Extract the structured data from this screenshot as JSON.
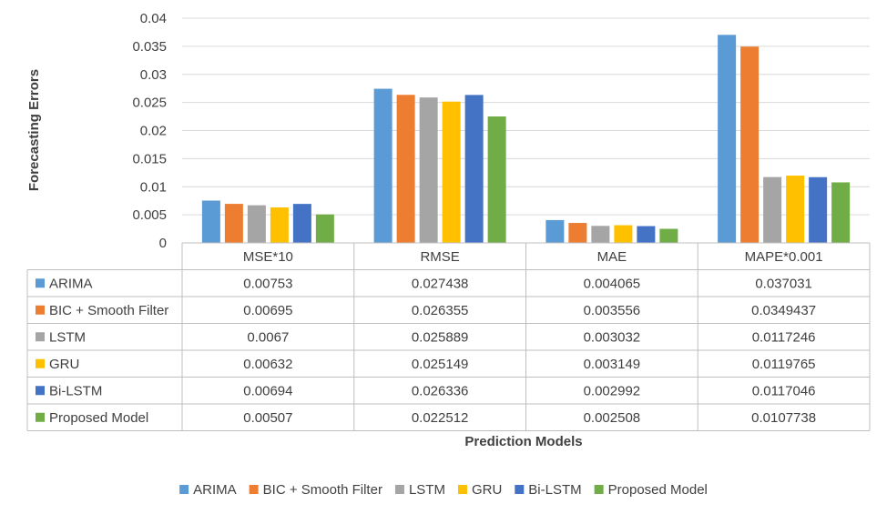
{
  "chart_data": {
    "type": "bar",
    "title": "",
    "xlabel": "Prediction Models",
    "ylabel": "Forecasting Errors",
    "ylim": [
      0,
      0.04
    ],
    "y_ticks": [
      "0",
      "0.005",
      "0.01",
      "0.015",
      "0.02",
      "0.025",
      "0.03",
      "0.035",
      "0.04"
    ],
    "grid": true,
    "legend_position": "bottom",
    "data_table": true,
    "categories": [
      "MSE*10",
      "RMSE",
      "MAE",
      "MAPE*0.001"
    ],
    "series": [
      {
        "name": "ARIMA",
        "color": "#5B9BD5",
        "values": [
          0.00753,
          0.027438,
          0.004065,
          0.037031
        ],
        "labels": [
          "0.00753",
          "0.027438",
          "0.004065",
          "0.037031"
        ]
      },
      {
        "name": "BIC + Smooth Filter",
        "color": "#ED7D31",
        "values": [
          0.00695,
          0.026355,
          0.003556,
          0.0349437
        ],
        "labels": [
          "0.00695",
          "0.026355",
          "0.003556",
          "0.0349437"
        ]
      },
      {
        "name": "LSTM",
        "color": "#A5A5A5",
        "values": [
          0.0067,
          0.025889,
          0.003032,
          0.0117246
        ],
        "labels": [
          "0.0067",
          "0.025889",
          "0.003032",
          "0.0117246"
        ]
      },
      {
        "name": "GRU",
        "color": "#FFC000",
        "values": [
          0.00632,
          0.025149,
          0.003149,
          0.0119765
        ],
        "labels": [
          "0.00632",
          "0.025149",
          "0.003149",
          "0.0119765"
        ]
      },
      {
        "name": "Bi-LSTM",
        "color": "#4472C4",
        "values": [
          0.00694,
          0.026336,
          0.002992,
          0.0117046
        ],
        "labels": [
          "0.00694",
          "0.026336",
          "0.002992",
          "0.0117046"
        ]
      },
      {
        "name": "Proposed Model",
        "color": "#70AD47",
        "values": [
          0.00507,
          0.022512,
          0.002508,
          0.0107738
        ],
        "labels": [
          "0.00507",
          "0.022512",
          "0.002508",
          "0.0107738"
        ]
      }
    ]
  }
}
